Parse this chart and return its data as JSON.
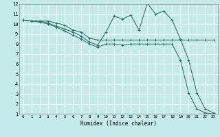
{
  "xlabel": "Humidex (Indice chaleur)",
  "bg_color": "#c5eaea",
  "grid_color": "#ffffff",
  "line_color": "#2e6e64",
  "xlim": [
    -0.5,
    23.5
  ],
  "ylim": [
    1,
    12
  ],
  "xticks": [
    0,
    1,
    2,
    3,
    4,
    5,
    6,
    7,
    8,
    9,
    10,
    11,
    12,
    13,
    14,
    15,
    16,
    17,
    18,
    19,
    20,
    21,
    22,
    23
  ],
  "yticks": [
    1,
    2,
    3,
    4,
    5,
    6,
    7,
    8,
    9,
    10,
    11,
    12
  ],
  "line1_x": [
    0,
    1,
    2,
    3,
    4,
    5,
    6,
    7,
    8,
    9,
    10,
    11,
    12,
    13,
    14,
    15,
    16,
    17,
    18,
    19,
    20,
    21,
    22,
    23
  ],
  "line1_y": [
    10.4,
    10.3,
    10.3,
    10.3,
    10.1,
    9.9,
    9.4,
    9.2,
    8.6,
    8.4,
    8.4,
    8.4,
    8.4,
    8.4,
    8.4,
    8.4,
    8.4,
    8.4,
    8.4,
    8.4,
    8.4,
    8.4,
    8.4,
    8.4
  ],
  "line2_x": [
    0,
    1,
    2,
    3,
    4,
    5,
    6,
    7,
    8,
    9,
    10,
    11,
    12,
    13,
    14,
    15,
    16,
    17,
    18,
    19,
    20,
    21,
    22,
    23
  ],
  "line2_y": [
    10.4,
    10.3,
    10.3,
    10.1,
    9.8,
    9.5,
    9.2,
    8.8,
    8.2,
    7.9,
    9.2,
    10.8,
    10.5,
    10.9,
    9.4,
    12.1,
    11.0,
    11.3,
    10.4,
    8.5,
    6.4,
    3.1,
    1.5,
    1.1
  ],
  "line3_x": [
    0,
    1,
    2,
    3,
    4,
    5,
    6,
    7,
    8,
    9,
    10,
    11,
    12,
    13,
    14,
    15,
    16,
    17,
    18,
    19,
    20,
    21,
    22,
    23
  ],
  "line3_y": [
    10.4,
    10.3,
    10.2,
    10.0,
    9.7,
    9.3,
    8.9,
    8.5,
    8.0,
    7.7,
    8.0,
    8.0,
    7.9,
    8.0,
    8.0,
    8.0,
    8.0,
    8.0,
    8.0,
    6.4,
    3.1,
    1.5,
    1.1,
    1.0
  ]
}
